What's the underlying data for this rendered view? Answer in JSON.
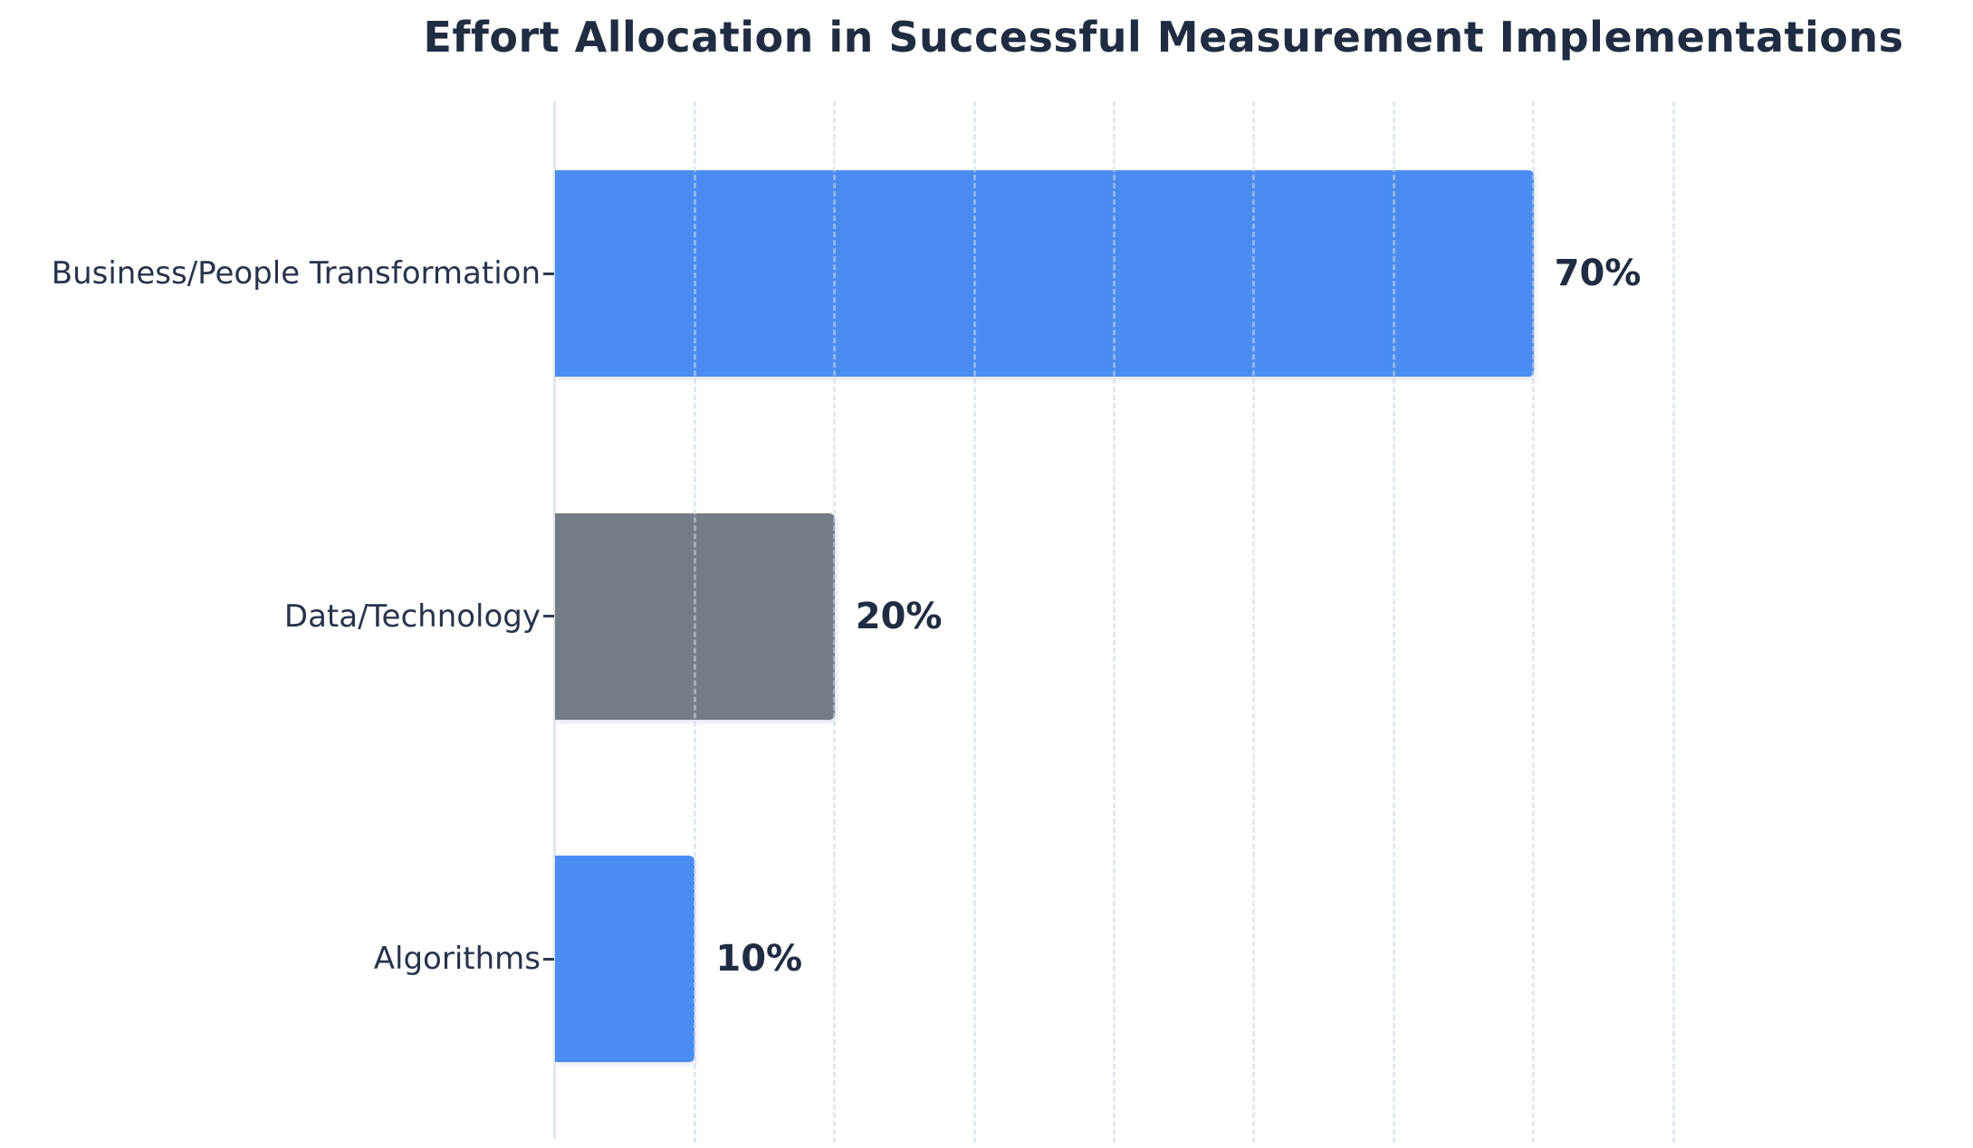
{
  "title": "Effort Allocation in Successful Measurement Implementations",
  "colors": {
    "title_text": "#202c42",
    "category_text": "#28334c",
    "value_text": "#202c42",
    "axis_line": "#e3e7ef",
    "grid_line": "#dfe5ef",
    "bar_blue": "#4a8cf2",
    "bar_gray": "#757c88",
    "background": "#ffffff"
  },
  "chart_data": {
    "type": "bar",
    "orientation": "horizontal",
    "title": "Effort Allocation in Successful Measurement Implementations",
    "categories": [
      "Business/People Transformation",
      "Data/Technology",
      "Algorithms"
    ],
    "values": [
      70,
      20,
      10
    ],
    "value_labels": [
      "70%",
      "20%",
      "10%"
    ],
    "bar_colors": [
      "#4a8cf2",
      "#757c88",
      "#4a8cf2"
    ],
    "xlabel": "",
    "ylabel": "",
    "xlim": [
      0,
      80
    ],
    "grid": "vertical dashed lines every 10 percent",
    "gridline_percents": [
      10,
      20,
      30,
      40,
      50,
      60,
      70,
      80
    ],
    "legend": "none",
    "value_unit": "%"
  }
}
